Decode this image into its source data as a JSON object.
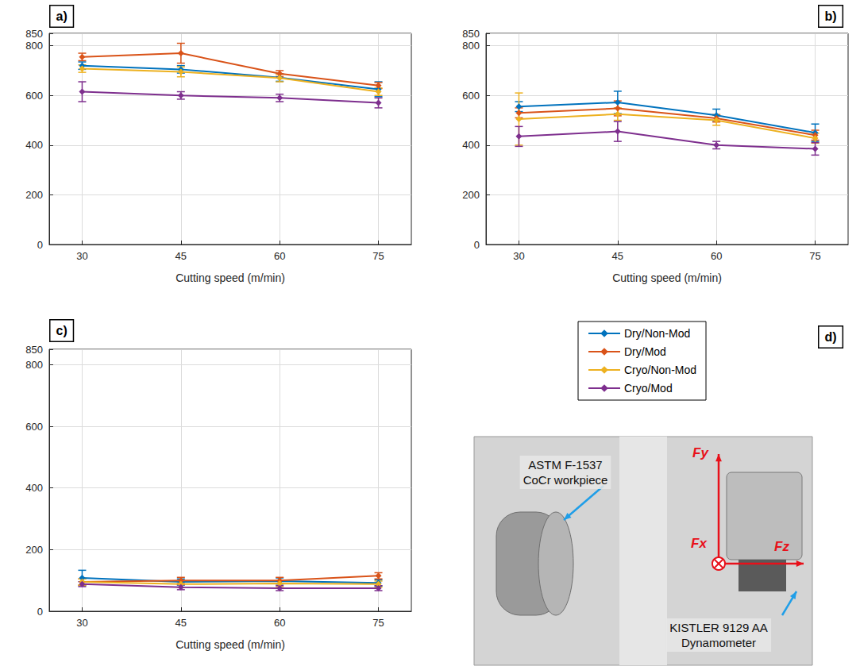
{
  "chart_data": [
    {
      "type": "line",
      "panel": "a)",
      "x_label": "Cutting speed (m/min)",
      "x": [
        30,
        45,
        60,
        75
      ],
      "xlim": [
        25,
        80
      ],
      "xticks": [
        30,
        45,
        60,
        75
      ],
      "ylim": [
        0,
        850
      ],
      "yticks": [
        0,
        200,
        400,
        600,
        800
      ],
      "grid": true,
      "marker": "diamond",
      "line_style": "solid",
      "series": [
        {
          "name": "Dry/Non-Mod",
          "color": "#0072BD",
          "values": [
            720,
            705,
            672,
            625
          ],
          "errors": [
            15,
            15,
            15,
            30
          ]
        },
        {
          "name": "Dry/Mod",
          "color": "#D95319",
          "values": [
            755,
            770,
            688,
            640
          ],
          "errors": [
            15,
            40,
            12,
            12
          ]
        },
        {
          "name": "Cryo/Non-Mod",
          "color": "#EDB120",
          "values": [
            708,
            695,
            670,
            615
          ],
          "errors": [
            15,
            20,
            15,
            15
          ]
        },
        {
          "name": "Cryo/Mod",
          "color": "#7E2F8E",
          "values": [
            615,
            600,
            590,
            570
          ],
          "errors": [
            40,
            15,
            15,
            20
          ]
        }
      ]
    },
    {
      "type": "line",
      "panel": "b)",
      "x_label": "Cutting speed (m/min)",
      "x": [
        30,
        45,
        60,
        75
      ],
      "xlim": [
        25,
        80
      ],
      "xticks": [
        30,
        45,
        60,
        75
      ],
      "ylim": [
        0,
        850
      ],
      "yticks": [
        0,
        200,
        400,
        600,
        800
      ],
      "grid": true,
      "marker": "diamond",
      "line_style": "solid",
      "series": [
        {
          "name": "Dry/Non-Mod",
          "color": "#0072BD",
          "values": [
            555,
            572,
            520,
            450
          ],
          "errors": [
            20,
            45,
            25,
            35
          ]
        },
        {
          "name": "Dry/Mod",
          "color": "#D95319",
          "values": [
            530,
            548,
            508,
            440
          ],
          "errors": [
            20,
            30,
            15,
            20
          ]
        },
        {
          "name": "Cryo/Non-Mod",
          "color": "#EDB120",
          "values": [
            505,
            525,
            500,
            428
          ],
          "errors": [
            105,
            25,
            20,
            20
          ]
        },
        {
          "name": "Cryo/Mod",
          "color": "#7E2F8E",
          "values": [
            435,
            455,
            400,
            385
          ],
          "errors": [
            40,
            40,
            15,
            25
          ]
        }
      ]
    },
    {
      "type": "line",
      "panel": "c)",
      "x_label": "Cutting speed (m/min)",
      "x": [
        30,
        45,
        60,
        75
      ],
      "xlim": [
        25,
        80
      ],
      "xticks": [
        30,
        45,
        60,
        75
      ],
      "ylim": [
        0,
        850
      ],
      "yticks": [
        0,
        200,
        400,
        600,
        800
      ],
      "grid": true,
      "marker": "diamond",
      "line_style": "solid",
      "series": [
        {
          "name": "Dry/Non-Mod",
          "color": "#0072BD",
          "values": [
            108,
            95,
            98,
            92
          ],
          "errors": [
            25,
            10,
            10,
            10
          ]
        },
        {
          "name": "Dry/Mod",
          "color": "#D95319",
          "values": [
            95,
            100,
            100,
            115
          ],
          "errors": [
            10,
            10,
            10,
            10
          ]
        },
        {
          "name": "Cryo/Non-Mod",
          "color": "#EDB120",
          "values": [
            95,
            88,
            90,
            88
          ],
          "errors": [
            10,
            10,
            10,
            10
          ]
        },
        {
          "name": "Cryo/Mod",
          "color": "#7E2F8E",
          "values": [
            88,
            78,
            75,
            75
          ],
          "errors": [
            8,
            8,
            8,
            8
          ]
        }
      ]
    }
  ],
  "photo": {
    "panel": "d)",
    "workpiece_label": "ASTM F-1537 CoCr workpiece",
    "dynamometer_label": "KISTLER 9129 AA Dynamometer",
    "force_labels": {
      "y": "Fy",
      "x": "Fx",
      "z": "Fz"
    }
  }
}
